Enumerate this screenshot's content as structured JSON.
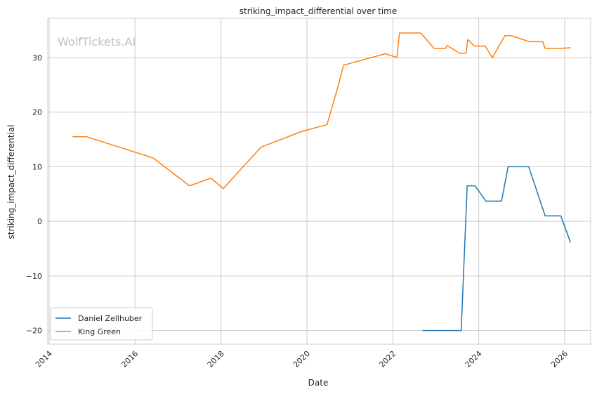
{
  "watermark": "WolfTickets.AI",
  "chart_data": {
    "type": "line",
    "title": "striking_impact_differential over time",
    "xlabel": "Date",
    "ylabel": "striking_impact_differential",
    "x_axis": "date",
    "xlim": [
      "2013-12-20",
      "2026-08-10"
    ],
    "ylim": [
      -22.5,
      37.2
    ],
    "x_ticks": [
      "2014",
      "2016",
      "2018",
      "2020",
      "2022",
      "2024",
      "2026"
    ],
    "y_ticks": [
      -20,
      -10,
      0,
      10,
      20,
      30
    ],
    "grid": true,
    "legend": "lower-left",
    "series": [
      {
        "name": "Daniel Zellhuber",
        "color": "#1f77b4",
        "points": [
          [
            "2022-09-10",
            -20.0
          ],
          [
            "2023-08-05",
            -20.0
          ],
          [
            "2023-09-25",
            6.5
          ],
          [
            "2023-12-01",
            6.5
          ],
          [
            "2024-03-02",
            3.7
          ],
          [
            "2024-07-13",
            3.7
          ],
          [
            "2024-09-07",
            10.0
          ],
          [
            "2025-03-01",
            10.0
          ],
          [
            "2025-07-19",
            1.0
          ],
          [
            "2025-11-29",
            1.0
          ],
          [
            "2026-02-20",
            -3.9
          ]
        ]
      },
      {
        "name": "King Green",
        "color": "#ff7f0e",
        "points": [
          [
            "2014-07-19",
            15.5
          ],
          [
            "2014-11-15",
            15.5
          ],
          [
            "2016-06-04",
            11.6
          ],
          [
            "2017-04-08",
            6.5
          ],
          [
            "2017-10-07",
            7.9
          ],
          [
            "2018-01-20",
            6.0
          ],
          [
            "2018-12-08",
            13.6
          ],
          [
            "2019-11-23",
            16.5
          ],
          [
            "2020-06-20",
            17.7
          ],
          [
            "2020-09-26",
            25.0
          ],
          [
            "2020-11-07",
            28.6
          ],
          [
            "2021-10-30",
            30.7
          ],
          [
            "2022-02-05",
            30.0
          ],
          [
            "2022-02-26",
            34.5
          ],
          [
            "2022-08-27",
            34.5
          ],
          [
            "2022-12-17",
            31.7
          ],
          [
            "2023-03-25",
            31.7
          ],
          [
            "2023-04-08",
            32.2
          ],
          [
            "2023-07-22",
            30.8
          ],
          [
            "2023-09-16",
            30.8
          ],
          [
            "2023-09-30",
            33.3
          ],
          [
            "2023-11-25",
            32.1
          ],
          [
            "2024-02-24",
            32.1
          ],
          [
            "2024-04-27",
            30.0
          ],
          [
            "2024-08-10",
            34.0
          ],
          [
            "2024-10-05",
            34.0
          ],
          [
            "2025-03-08",
            32.9
          ],
          [
            "2025-06-28",
            32.9
          ],
          [
            "2025-07-19",
            31.7
          ],
          [
            "2025-12-06",
            31.7
          ],
          [
            "2026-02-21",
            31.8
          ]
        ]
      }
    ]
  }
}
